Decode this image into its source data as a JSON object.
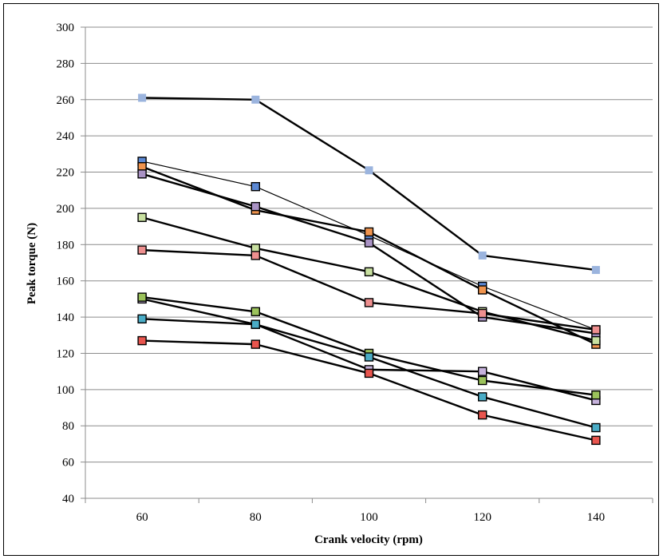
{
  "chart_data": {
    "type": "line",
    "title": "",
    "xlabel": "Crank velocity (rpm)",
    "ylabel": "Peak torque (N)",
    "ylim": [
      40,
      300
    ],
    "y_ticks": [
      40,
      60,
      80,
      100,
      120,
      140,
      160,
      180,
      200,
      220,
      240,
      260,
      280,
      300
    ],
    "categories": [
      "60",
      "80",
      "100",
      "120",
      "140"
    ],
    "grid": "horizontal",
    "legend": "none",
    "series": [
      {
        "color": "#9bb4de",
        "line_weight": "thick",
        "values": [
          261,
          260,
          221,
          174,
          166
        ]
      },
      {
        "color": "#5b88d4",
        "line_weight": "thin",
        "values": [
          226,
          212,
          185,
          157,
          133
        ]
      },
      {
        "color": "#f0944e",
        "line_weight": "thick",
        "values": [
          223,
          199,
          187,
          155,
          125
        ]
      },
      {
        "color": "#a992c4",
        "line_weight": "thick",
        "values": [
          219,
          201,
          181,
          140,
          131
        ]
      },
      {
        "color": "#c8e0a0",
        "line_weight": "thick",
        "values": [
          195,
          178,
          165,
          143,
          127
        ]
      },
      {
        "color": "#ee8f8f",
        "line_weight": "thick",
        "values": [
          177,
          174,
          148,
          142,
          133
        ]
      },
      {
        "color": "#c6b2dc",
        "line_weight": "thick",
        "values": [
          150,
          136,
          111,
          110,
          94
        ]
      },
      {
        "color": "#9bc25b",
        "line_weight": "thick",
        "values": [
          151,
          143,
          120,
          105,
          97
        ]
      },
      {
        "color": "#4aacc6",
        "line_weight": "thick",
        "values": [
          139,
          136,
          118,
          96,
          79
        ]
      },
      {
        "color": "#e8554e",
        "line_weight": "thick",
        "values": [
          127,
          125,
          109,
          86,
          72
        ]
      }
    ]
  }
}
